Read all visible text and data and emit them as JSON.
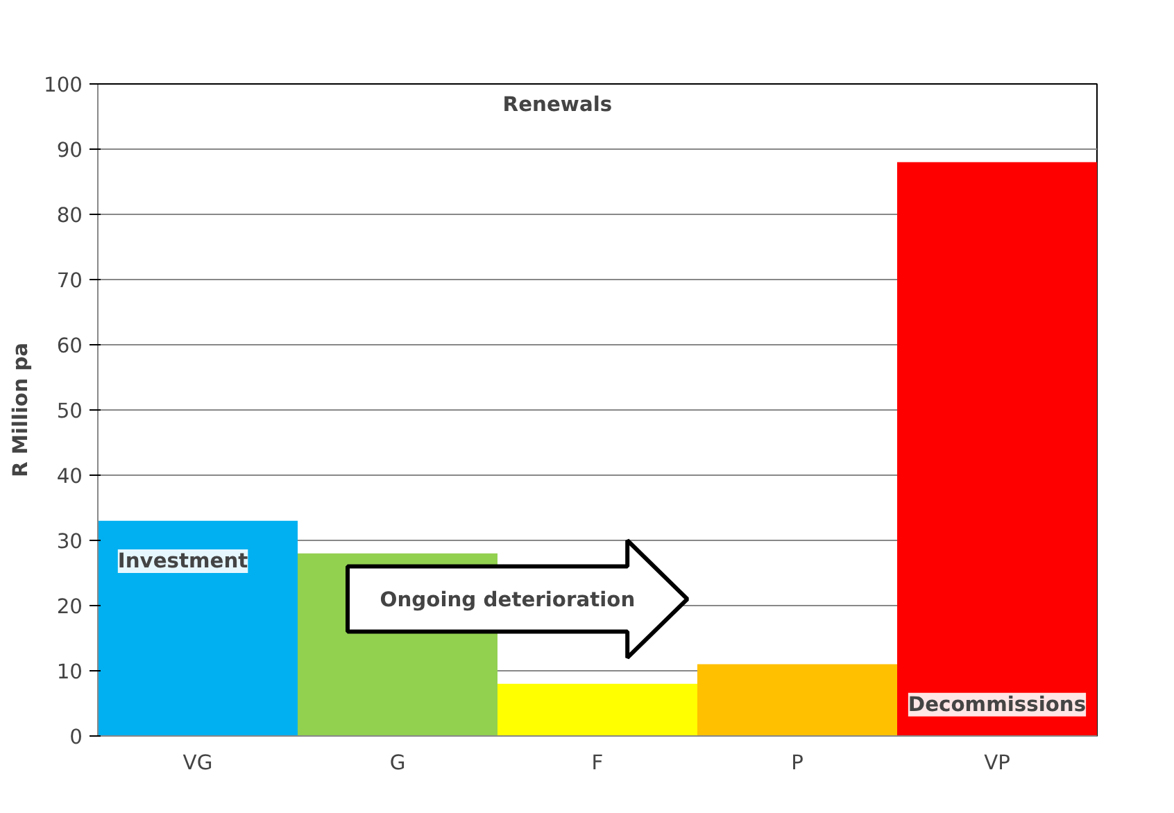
{
  "chart_data": {
    "type": "bar",
    "ylabel": "R Million pa",
    "categories": [
      "VG",
      "G",
      "F",
      "P",
      "VP"
    ],
    "values": [
      33,
      28,
      8,
      11,
      88
    ],
    "colors": [
      "#00b0f0",
      "#92d050",
      "#ffff00",
      "#ffc000",
      "#ff0000"
    ],
    "ylim": [
      0,
      100
    ],
    "yticks": [
      0,
      10,
      20,
      30,
      40,
      50,
      60,
      70,
      80,
      90,
      100
    ],
    "grid": "y",
    "annotations": [
      "Renewals",
      "Investment",
      "Ongoing deterioration",
      "Decommissions"
    ]
  }
}
